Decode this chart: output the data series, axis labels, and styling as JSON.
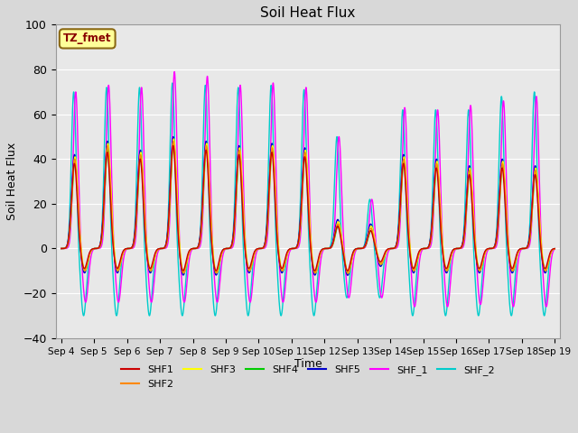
{
  "title": "Soil Heat Flux",
  "xlabel": "Time",
  "ylabel": "Soil Heat Flux",
  "xlim_days": [
    3.83,
    19.17
  ],
  "ylim": [
    -40,
    100
  ],
  "yticks": [
    -40,
    -20,
    0,
    20,
    40,
    60,
    80,
    100
  ],
  "xtick_labels": [
    "Sep 4",
    "Sep 5",
    "Sep 6",
    "Sep 7",
    "Sep 8",
    "Sep 9",
    "Sep 10",
    "Sep 11",
    "Sep 12",
    "Sep 13",
    "Sep 14",
    "Sep 15",
    "Sep 16",
    "Sep 17",
    "Sep 18",
    "Sep 19"
  ],
  "xtick_positions": [
    4,
    5,
    6,
    7,
    8,
    9,
    10,
    11,
    12,
    13,
    14,
    15,
    16,
    17,
    18,
    19
  ],
  "annotation_text": "TZ_fmet",
  "annotation_box_color": "#FFFF99",
  "annotation_box_border": "#8B6914",
  "series_colors": {
    "SHF1": "#cc0000",
    "SHF2": "#ff8800",
    "SHF3": "#ffff00",
    "SHF4": "#00cc00",
    "SHF5": "#0000cc",
    "SHF_1": "#ff00ff",
    "SHF_2": "#00cccc"
  },
  "background_color": "#e8e8e8",
  "plot_bg_color": "#e8e8e8",
  "grid_color": "#ffffff",
  "n_days": 15,
  "start_day": 4,
  "figsize": [
    6.4,
    4.8
  ],
  "dpi": 100
}
